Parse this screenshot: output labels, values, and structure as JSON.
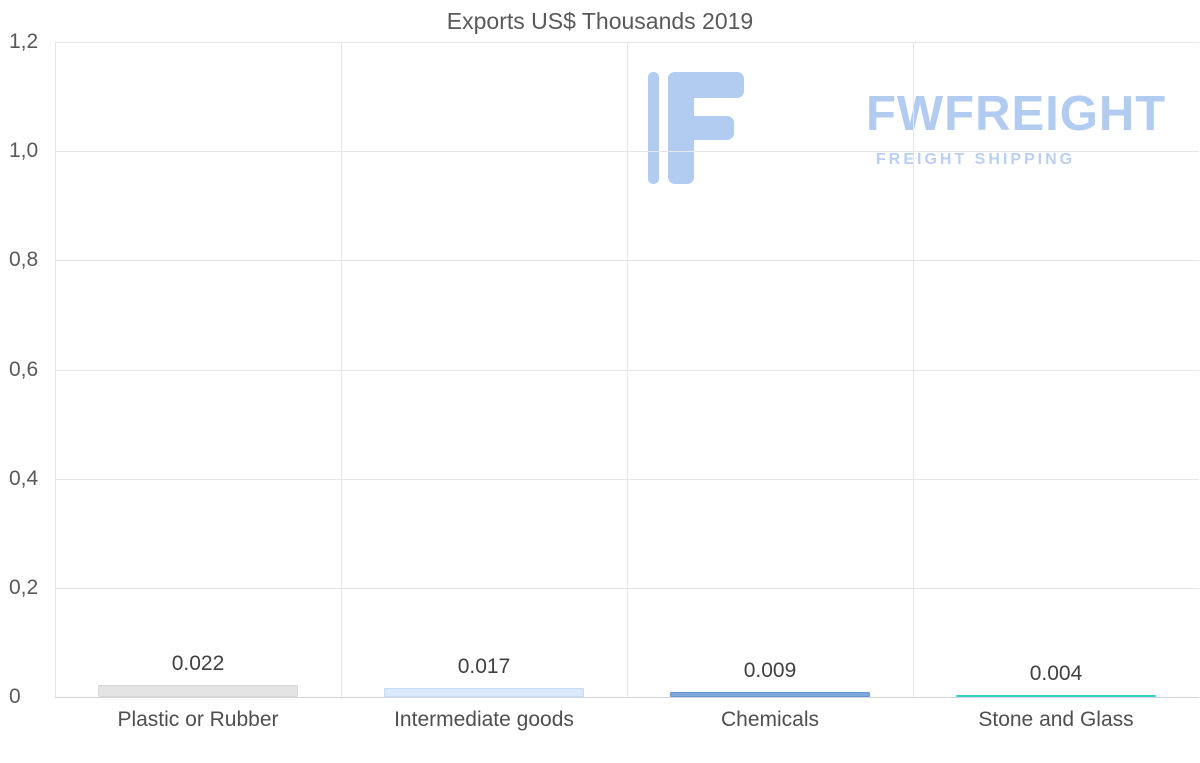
{
  "chart": {
    "title": "Exports US$ Thousands 2019"
  },
  "watermark": {
    "name": "FWFREIGHT",
    "tagline": "FREIGHT SHIPPING",
    "color": "#a4c2ef"
  },
  "chart_data": {
    "type": "bar",
    "title": "Exports US$ Thousands 2019",
    "categories": [
      "Plastic or Rubber",
      "Intermediate goods",
      "Chemicals",
      "Stone and Glass"
    ],
    "values": [
      0.022,
      0.017,
      0.009,
      0.004
    ],
    "value_labels": [
      "0.022",
      "0.017",
      "0.009",
      "0.004"
    ],
    "bar_colors": [
      "#e4e4e4",
      "#dbe9fc",
      "#80a9da",
      "#45e0d2"
    ],
    "bar_border_colors": [
      "#d7d7d7",
      "#c6ddf8",
      "#6496d0",
      "#2fd2c6"
    ],
    "xlabel": "",
    "ylabel": "",
    "ylim": [
      0,
      1.2
    ],
    "y_ticks": [
      0,
      0.2,
      0.4,
      0.6,
      0.8,
      1.0,
      1.2
    ],
    "y_tick_labels": [
      "0",
      "0,2",
      "0,4",
      "0,6",
      "0,8",
      "1,0",
      "1,2"
    ],
    "grid": true,
    "legend": false
  }
}
